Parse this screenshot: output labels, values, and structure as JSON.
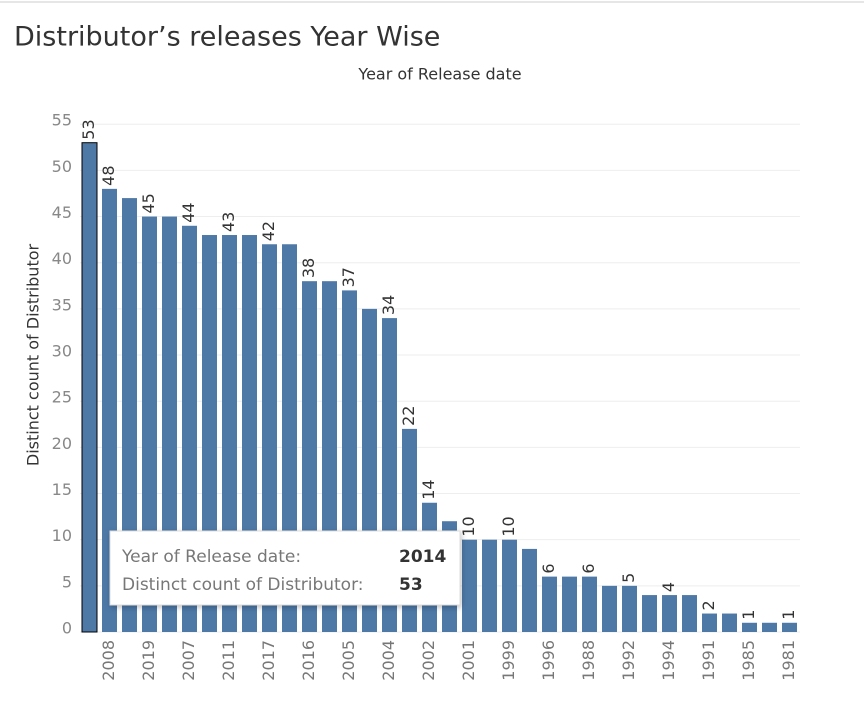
{
  "chart_data": {
    "type": "bar",
    "title": "Distributor’s releases Year Wise",
    "x_axis_title": "Year of Release date",
    "y_axis_title": "Distinct count of Distributor",
    "categories": [
      null,
      "2008",
      null,
      "2019",
      null,
      "2007",
      null,
      "2011",
      null,
      "2017",
      null,
      "2016",
      null,
      "2005",
      null,
      "2004",
      null,
      "2002",
      null,
      "2001",
      null,
      "1999",
      null,
      "1996",
      null,
      "1988",
      null,
      "1992",
      null,
      "1994",
      null,
      "1991",
      null,
      "1985",
      null,
      "1981"
    ],
    "values": [
      53,
      48,
      47,
      45,
      45,
      44,
      43,
      43,
      43,
      42,
      42,
      38,
      38,
      37,
      35,
      34,
      22,
      14,
      12,
      10,
      10,
      10,
      9,
      6,
      6,
      6,
      5,
      5,
      4,
      4,
      4,
      2,
      2,
      1,
      1,
      1
    ],
    "value_labels": [
      "53",
      "48",
      null,
      "45",
      null,
      "44",
      null,
      "43",
      null,
      "42",
      null,
      "38",
      null,
      "37",
      null,
      "34",
      "22",
      "14",
      null,
      "10",
      null,
      "10",
      null,
      "6",
      null,
      "6",
      null,
      "5",
      null,
      "4",
      null,
      "2",
      null,
      "1",
      null,
      "1"
    ],
    "color": "#4e79a7",
    "ylim": [
      0,
      56
    ],
    "yticks": [
      0,
      5,
      10,
      15,
      20,
      25,
      30,
      35,
      40,
      45,
      50,
      55
    ],
    "grid": true,
    "tooltip": {
      "rows": [
        {
          "label": "Year of Release date:",
          "value": 2014
        },
        {
          "label": "Distinct count of Distributor:",
          "value": 53
        }
      ]
    }
  }
}
